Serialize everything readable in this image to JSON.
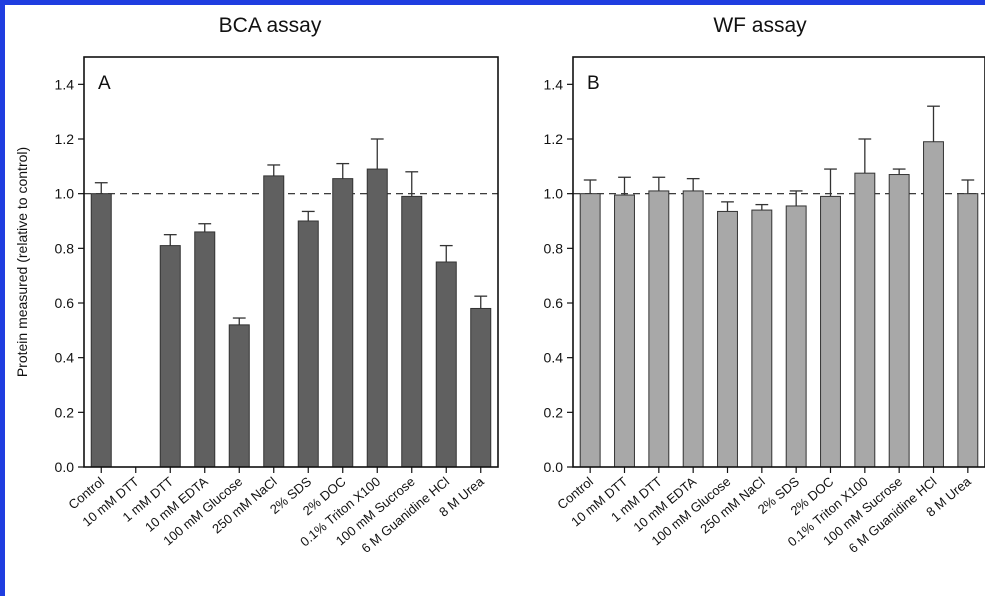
{
  "chart_data": [
    {
      "type": "bar",
      "panel_title": "BCA assay",
      "panel_letter": "A",
      "ylabel": "Protein measured (relative to control)",
      "ylim": [
        0,
        1.5
      ],
      "yticks": [
        "0.0",
        "0.2",
        "0.4",
        "0.6",
        "0.8",
        "1.0",
        "1.2",
        "1.4"
      ],
      "reference_line": 1.0,
      "bar_color": "#606060",
      "categories": [
        "Control",
        "10 mM DTT",
        "1 mM DTT",
        "10 mM EDTA",
        "100 mM Glucose",
        "250 mM NaCl",
        "2% SDS",
        "2% DOC",
        "0.1% Triton X100",
        "100 mM Sucrose",
        "6 M Guanidine HCl",
        "8 M Urea"
      ],
      "values": [
        1.0,
        null,
        0.81,
        0.86,
        0.52,
        1.065,
        0.9,
        1.055,
        1.09,
        0.99,
        0.75,
        0.58
      ],
      "errors": [
        0.04,
        null,
        0.04,
        0.03,
        0.025,
        0.04,
        0.035,
        0.055,
        0.11,
        0.09,
        0.06,
        0.045
      ]
    },
    {
      "type": "bar",
      "panel_title": "WF assay",
      "panel_letter": "B",
      "ylabel": "",
      "ylim": [
        0,
        1.5
      ],
      "yticks": [
        "0.0",
        "0.2",
        "0.4",
        "0.6",
        "0.8",
        "1.0",
        "1.2",
        "1.4"
      ],
      "reference_line": 1.0,
      "bar_color": "#a8a8a8",
      "categories": [
        "Control",
        "10 mM DTT",
        "1 mM DTT",
        "10 mM EDTA",
        "100 mM Glucose",
        "250 mM NaCl",
        "2% SDS",
        "2% DOC",
        "0.1% Triton X100",
        "100 mM Sucrose",
        "6 M Guanidine HCl",
        "8 M Urea"
      ],
      "values": [
        1.0,
        0.995,
        1.01,
        1.01,
        0.935,
        0.94,
        0.955,
        0.99,
        1.075,
        1.07,
        1.19,
        1.0
      ],
      "errors": [
        0.05,
        0.065,
        0.05,
        0.045,
        0.035,
        0.02,
        0.055,
        0.1,
        0.125,
        0.02,
        0.13,
        0.05
      ]
    }
  ]
}
